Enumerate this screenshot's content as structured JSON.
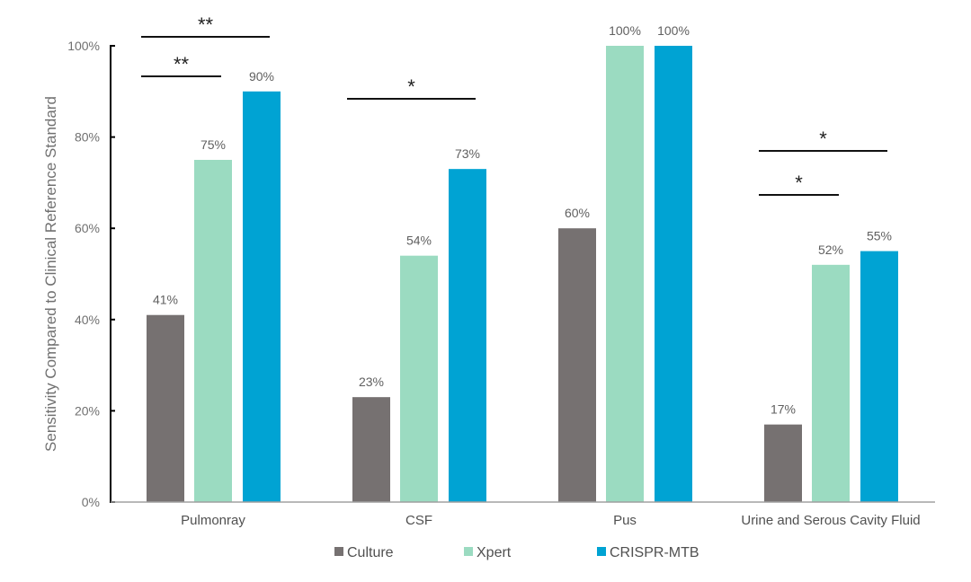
{
  "chart_data": {
    "type": "bar",
    "title": "",
    "xlabel": "",
    "ylabel": "Sensitivity Compared to Clinical Reference Standard",
    "ylim": [
      0,
      100
    ],
    "yticks": [
      "0%",
      "20%",
      "40%",
      "60%",
      "80%",
      "100%"
    ],
    "categories": [
      "Pulmonray",
      "CSF",
      "Pus",
      "Urine and Serous Cavity Fluid"
    ],
    "series": [
      {
        "name": "Culture",
        "color": "#767171",
        "values": [
          41,
          23,
          60,
          17
        ],
        "labels": [
          "41%",
          "23%",
          "60%",
          "17%"
        ]
      },
      {
        "name": "Xpert",
        "color": "#9BDBC1",
        "values": [
          75,
          54,
          100,
          52
        ],
        "labels": [
          "75%",
          "54%",
          "100%",
          "52%"
        ]
      },
      {
        "name": "CRISPR-MTB",
        "color": "#00A3D3",
        "values": [
          90,
          73,
          100,
          55
        ],
        "labels": [
          "90%",
          "73%",
          "100%",
          "55%"
        ]
      }
    ],
    "significance": [
      {
        "category": 0,
        "from": 0,
        "to": 2,
        "mark": "**"
      },
      {
        "category": 0,
        "from": 0,
        "to": 1,
        "mark": "**"
      },
      {
        "category": 1,
        "from": 0,
        "to": 2,
        "mark": "*"
      },
      {
        "category": 3,
        "from": 0,
        "to": 2,
        "mark": "*"
      },
      {
        "category": 3,
        "from": 0,
        "to": 1,
        "mark": "*"
      }
    ],
    "legend": "bottom",
    "grid": false
  }
}
